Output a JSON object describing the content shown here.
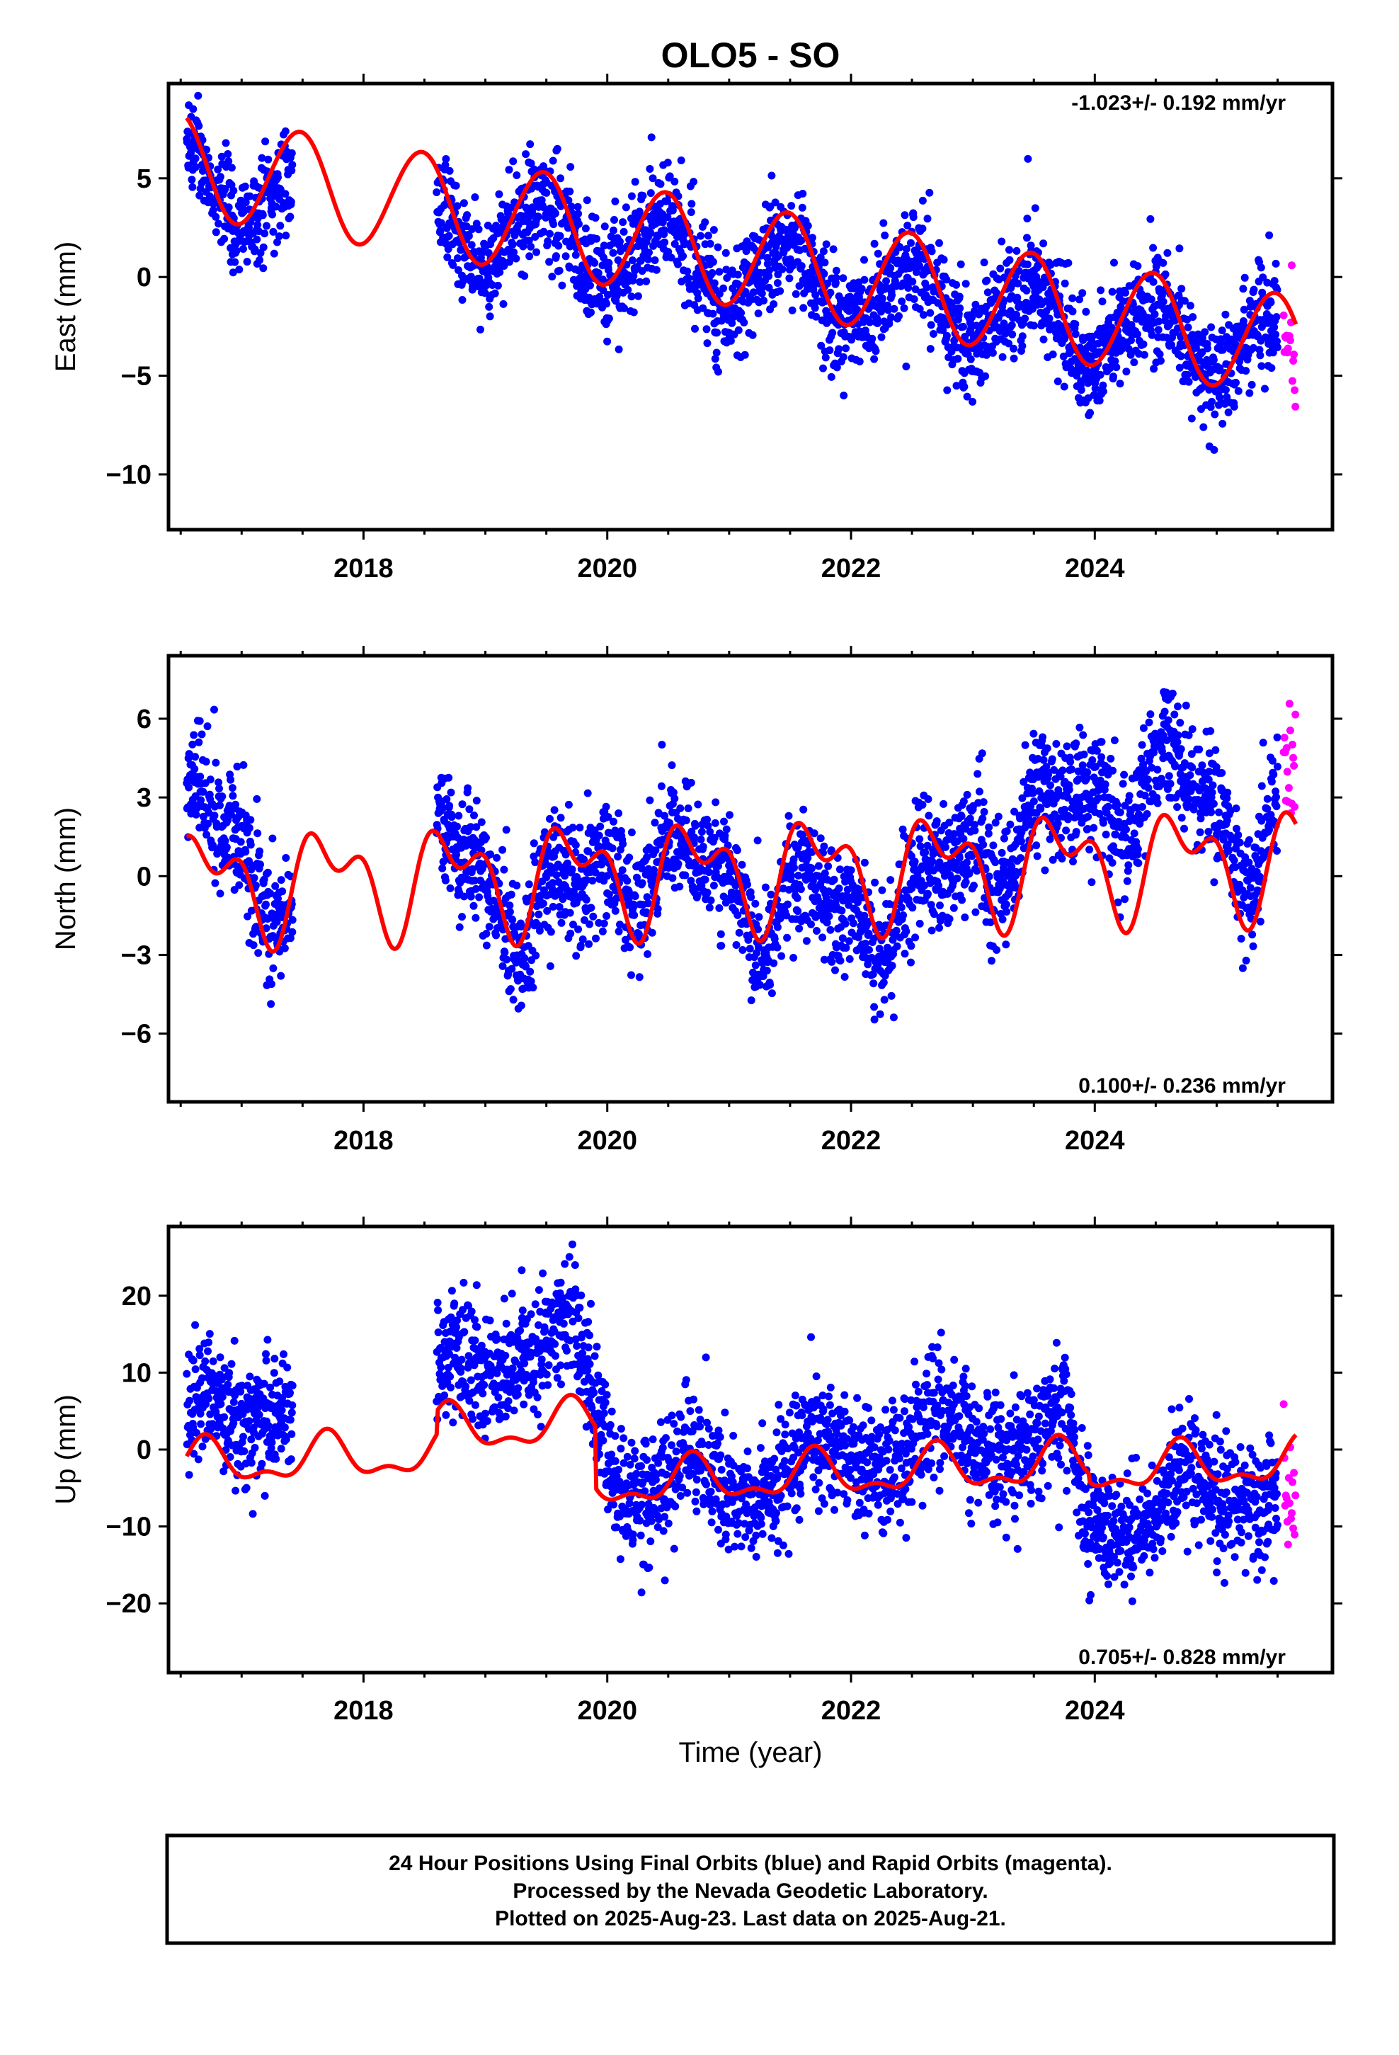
{
  "title": "OLO5 - SO",
  "xlabel": "Time (year)",
  "footer": [
    "24 Hour Positions Using Final Orbits (blue) and Rapid Orbits (magenta).",
    "Processed by the Nevada Geodetic Laboratory.",
    "Plotted on 2025-Aug-23. Last data on 2025-Aug-21."
  ],
  "colors": {
    "final": "#0000ff",
    "rapid": "#ff00ff",
    "model": "#ff0000",
    "frame": "#000000"
  },
  "chart_data": [
    {
      "type": "scatter",
      "ylabel": "East (mm)",
      "rate": "-1.023+/- 0.192 mm/yr",
      "xlim": [
        2016.4,
        2025.95
      ],
      "ylim": [
        -12.8,
        9.8
      ],
      "xticks": [
        2018,
        2020,
        2022,
        2024
      ],
      "yticks": [
        5,
        0,
        -5,
        -10
      ],
      "ytick_labels": [
        "5",
        "0",
        "−5",
        "−10"
      ],
      "series": [
        {
          "role": "final",
          "segments": [
            [
              2016.55,
              2017.42
            ],
            [
              2018.6,
              2025.5
            ]
          ],
          "trend": [
            [
              2016.55,
              5.6
            ],
            [
              2017.42,
              3.1
            ],
            [
              2018.6,
              2.8
            ],
            [
              2020.0,
              1.5
            ],
            [
              2022.0,
              -0.6
            ],
            [
              2024.0,
              -2.6
            ],
            [
              2025.5,
              -3.6
            ]
          ],
          "scatter": 1.4
        },
        {
          "role": "rapid",
          "segments": [
            [
              2025.55,
              2025.65
            ]
          ],
          "trend": [
            [
              2025.55,
              -3.5
            ],
            [
              2025.65,
              -3.9
            ]
          ],
          "scatter": 1.6
        },
        {
          "role": "model",
          "x_range": [
            2016.55,
            2025.65
          ],
          "offset_at_2016_55": 5.7,
          "rate": -1.02,
          "annual_amplitude": 2.6,
          "annual_peak": 2016.47,
          "semiannual_amplitude": 0.1,
          "semiannual_peak": 2016.6
        }
      ]
    },
    {
      "type": "scatter",
      "ylabel": "North (mm)",
      "rate": "0.100+/- 0.236 mm/yr",
      "xlim": [
        2016.4,
        2025.95
      ],
      "ylim": [
        -8.6,
        8.4
      ],
      "xticks": [
        2018,
        2020,
        2022,
        2024
      ],
      "yticks": [
        6,
        3,
        0,
        -3,
        -6
      ],
      "ytick_labels": [
        "6",
        "3",
        "0",
        "−3",
        "−6"
      ],
      "series": [
        {
          "role": "final",
          "segments": [
            [
              2016.55,
              2017.42
            ],
            [
              2018.6,
              2025.5
            ]
          ],
          "trend": [
            [
              2016.55,
              2.5
            ],
            [
              2017.42,
              -0.8
            ],
            [
              2018.6,
              1.8
            ],
            [
              2019.3,
              -1.5
            ],
            [
              2020.4,
              0.9
            ],
            [
              2021.4,
              -1.2
            ],
            [
              2022.2,
              -1.5
            ],
            [
              2023.4,
              1.8
            ],
            [
              2024.65,
              4.0
            ],
            [
              2025.3,
              0.8
            ],
            [
              2025.5,
              2.8
            ]
          ],
          "scatter": 1.2
        },
        {
          "role": "rapid",
          "segments": [
            [
              2025.55,
              2025.65
            ]
          ],
          "trend": [
            [
              2025.55,
              4.5
            ],
            [
              2025.65,
              4.4
            ]
          ],
          "scatter": 1.4
        },
        {
          "role": "model",
          "x_range": [
            2016.55,
            2025.65
          ],
          "offset_at_2016_55": -0.3,
          "rate": 0.1,
          "annual_amplitude": 1.6,
          "annual_peak": 2016.72,
          "semiannual_amplitude": 1.1,
          "semiannual_peak": 2016.52
        }
      ]
    },
    {
      "type": "scatter",
      "ylabel": "Up (mm)",
      "rate": "0.705+/- 0.828 mm/yr",
      "xlim": [
        2016.4,
        2025.95
      ],
      "ylim": [
        -29,
        29
      ],
      "xticks": [
        2018,
        2020,
        2022,
        2024
      ],
      "yticks": [
        20,
        10,
        0,
        -10,
        -20
      ],
      "ytick_labels": [
        "20",
        "10",
        "0",
        "−10",
        "−20"
      ],
      "series": [
        {
          "role": "final",
          "segments": [
            [
              2016.55,
              2017.42
            ],
            [
              2018.6,
              2025.5
            ]
          ],
          "trend": [
            [
              2016.55,
              5.0
            ],
            [
              2017.42,
              5.0
            ],
            [
              2018.6,
              9.0
            ],
            [
              2019.0,
              11.0
            ],
            [
              2019.7,
              15.0
            ],
            [
              2019.95,
              5.0
            ],
            [
              2020.1,
              -6.0
            ],
            [
              2020.6,
              -3.0
            ],
            [
              2021.2,
              -5.0
            ],
            [
              2021.8,
              0.0
            ],
            [
              2022.2,
              -2.0
            ],
            [
              2022.7,
              3.0
            ],
            [
              2023.2,
              0.0
            ],
            [
              2023.75,
              3.0
            ],
            [
              2023.95,
              -8.0
            ],
            [
              2024.4,
              -10.0
            ],
            [
              2024.8,
              -4.0
            ],
            [
              2025.2,
              -6.0
            ],
            [
              2025.5,
              -5.5
            ]
          ],
          "scatter": 4.0
        },
        {
          "role": "rapid",
          "segments": [
            [
              2025.55,
              2025.65
            ]
          ],
          "trend": [
            [
              2025.55,
              -5.0
            ],
            [
              2025.65,
              -6.0
            ]
          ],
          "scatter": 5.0
        },
        {
          "role": "model",
          "x_range": [
            2016.55,
            2025.65
          ],
          "offset_at_2016_55": -2.0,
          "rate": 0.7,
          "annual_amplitude": 2.6,
          "annual_peak": 2016.7,
          "semiannual_amplitude": 1.3,
          "semiannual_peak": 2016.7,
          "steps": [
            [
              2018.6,
              3.0
            ],
            [
              2019.9,
              -8.0
            ],
            [
              2023.95,
              -1.0
            ]
          ]
        }
      ]
    }
  ]
}
